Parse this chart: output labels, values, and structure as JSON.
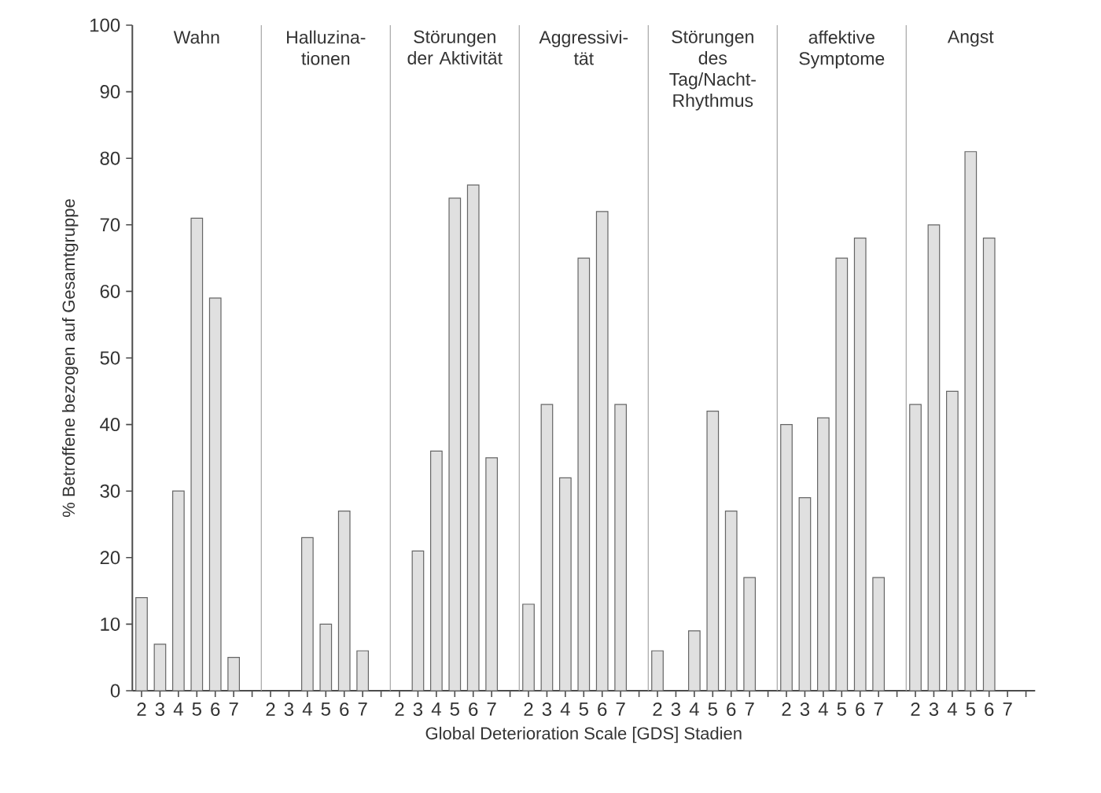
{
  "chart_data": {
    "type": "bar",
    "xlabel": "Global Deterioration Scale [GDS] Stadien",
    "ylabel": "% Betroffene bezogen auf Gesamtgruppe",
    "categories": [
      "2",
      "3",
      "4",
      "5",
      "6",
      "7",
      null,
      "2",
      "3",
      "4",
      "5",
      "6",
      "7",
      null,
      "2",
      "3",
      "4",
      "5",
      "6",
      "7",
      null,
      "2",
      "3",
      "4",
      "5",
      "6",
      "7",
      null,
      "2",
      "3",
      "4",
      "5",
      "6",
      "7",
      null,
      "2",
      "3",
      "4",
      "5",
      "6",
      "7",
      null,
      "2",
      "3",
      "4",
      "5",
      "6",
      "7",
      null
    ],
    "ylim": [
      0,
      100
    ],
    "yticks": [
      0,
      10,
      20,
      30,
      40,
      50,
      60,
      70,
      80,
      90,
      100
    ],
    "color": "#e0e0e0",
    "values": [
      14,
      7,
      30,
      71,
      59,
      5,
      null,
      null,
      null,
      23,
      10,
      27,
      6,
      null,
      null,
      21,
      36,
      74,
      76,
      35,
      null,
      13,
      43,
      32,
      65,
      72,
      43,
      null,
      6,
      null,
      9,
      42,
      27,
      17,
      null,
      40,
      29,
      41,
      65,
      68,
      17,
      null,
      43,
      70,
      45,
      81,
      68,
      null,
      null
    ],
    "annotations": [
      "Wahn",
      "Halluzina-tionen",
      "Störungen der Aktivität",
      "Aggressivi-tät",
      "Störungen des Tag/Nacht-Rhythmus",
      "affektive Symptome",
      "Angst"
    ]
  }
}
